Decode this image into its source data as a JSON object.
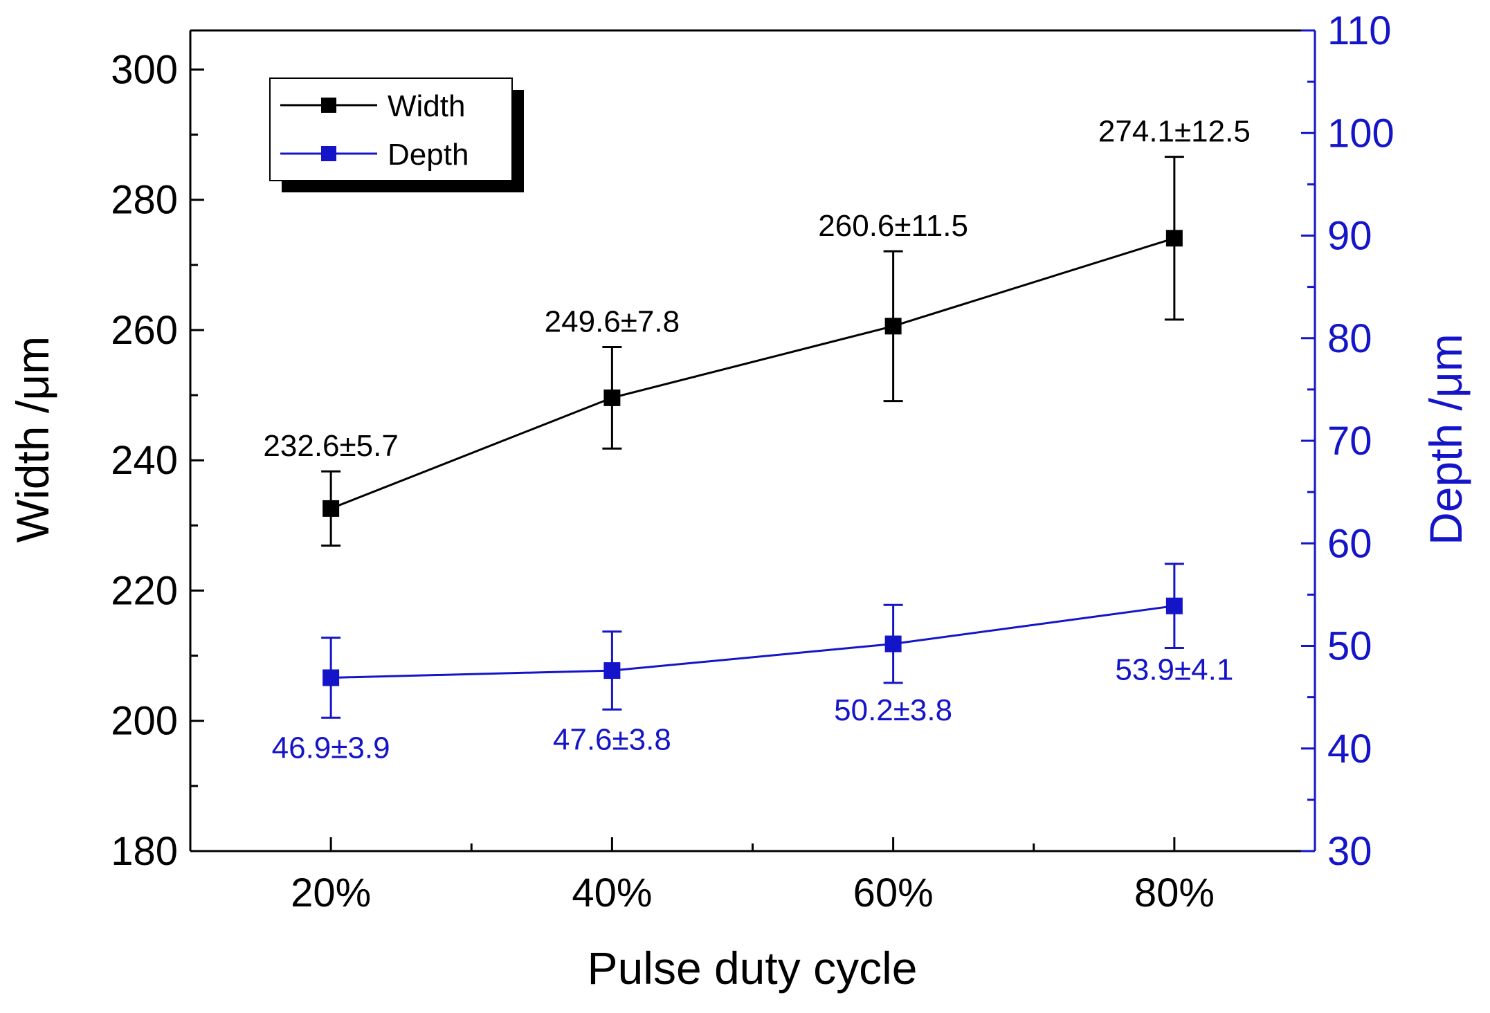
{
  "chart_data": {
    "type": "line",
    "title": "",
    "xlabel": "Pulse duty cycle",
    "ylabel": "Width /μm",
    "y2label": "Depth /μm",
    "categories": [
      "20%",
      "40%",
      "60%",
      "80%"
    ],
    "ylim": [
      180,
      306
    ],
    "y2lim": [
      30,
      110
    ],
    "yticks": [
      180,
      200,
      220,
      240,
      260,
      280,
      300
    ],
    "y2ticks": [
      30,
      40,
      50,
      60,
      70,
      80,
      90,
      100,
      110
    ],
    "series": [
      {
        "name": "Width",
        "axis": "left",
        "color": "#000000",
        "values": [
          232.6,
          249.6,
          260.6,
          274.1
        ],
        "errors": [
          5.7,
          7.8,
          11.5,
          12.5
        ],
        "labels": [
          "232.6±5.7",
          "249.6±7.8",
          "260.6±11.5",
          "274.1±12.5"
        ]
      },
      {
        "name": "Depth",
        "axis": "right",
        "color": "#1414c8",
        "values": [
          46.9,
          47.6,
          50.2,
          53.9
        ],
        "errors": [
          3.9,
          3.8,
          3.8,
          4.1
        ],
        "labels": [
          "46.9±3.9",
          "47.6±3.8",
          "50.2±3.8",
          "53.9±4.1"
        ]
      }
    ],
    "legend": {
      "position": "top-left",
      "items": [
        "Width",
        "Depth"
      ]
    },
    "colors": {
      "axis_left": "#000000",
      "axis_right": "#1414c8"
    }
  }
}
